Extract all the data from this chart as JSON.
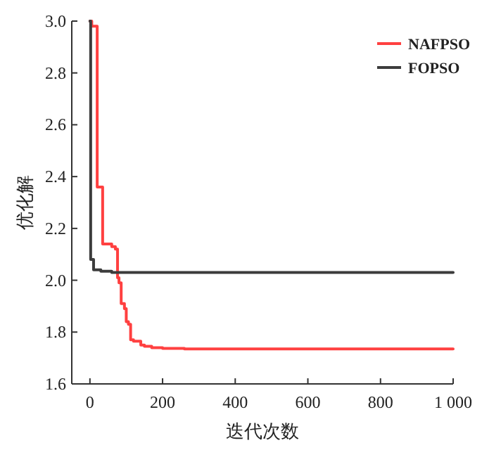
{
  "chart_data": {
    "type": "step",
    "xlabel": "迭代次数",
    "ylabel": "优化解",
    "xlim": [
      -50,
      1000
    ],
    "ylim": [
      1.6,
      3.0
    ],
    "xticks": [
      0,
      200,
      400,
      600,
      800,
      {
        "value": 1000,
        "label": "1 000"
      }
    ],
    "yticks": [
      {
        "value": 1.6,
        "label": "1.6"
      },
      {
        "value": 1.8,
        "label": "1.8"
      },
      {
        "value": 2.0,
        "label": "2.0"
      },
      {
        "value": 2.2,
        "label": "2.2"
      },
      {
        "value": 2.4,
        "label": "2.4"
      },
      {
        "value": 2.6,
        "label": "2.6"
      },
      {
        "value": 2.8,
        "label": "2.8"
      },
      {
        "value": 3.0,
        "label": "3.0"
      }
    ],
    "legend": "top right",
    "grid": false,
    "series": [
      {
        "name": "NAFPSO",
        "color": "#ff4040",
        "x": [
          0,
          5,
          20,
          35,
          60,
          70,
          76,
          80,
          86,
          95,
          100,
          106,
          112,
          120,
          140,
          150,
          170,
          200,
          260,
          1000
        ],
        "values": [
          3.0,
          2.98,
          2.36,
          2.14,
          2.13,
          2.12,
          2.01,
          1.99,
          1.91,
          1.89,
          1.84,
          1.83,
          1.77,
          1.765,
          1.75,
          1.745,
          1.74,
          1.737,
          1.735,
          1.735
        ]
      },
      {
        "name": "FOPSO",
        "color": "#3c3c3c",
        "x": [
          0,
          2,
          10,
          30,
          60,
          1000
        ],
        "values": [
          3.0,
          2.08,
          2.04,
          2.035,
          2.03,
          2.03
        ]
      }
    ]
  }
}
